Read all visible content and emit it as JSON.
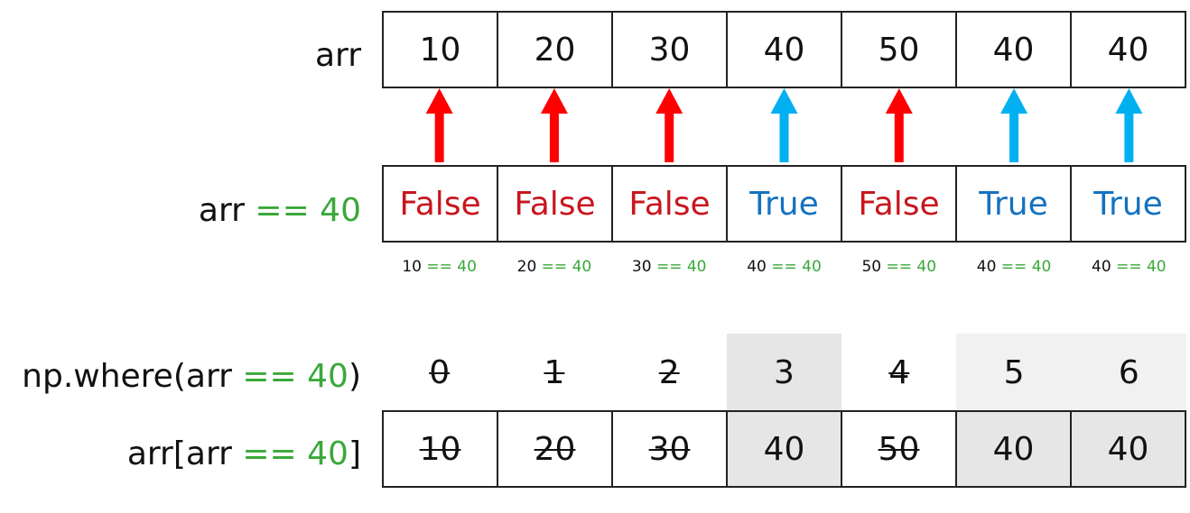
{
  "labels": {
    "arr": "arr",
    "cmp_prefix": "arr ",
    "cmp_op": "== 40",
    "where_prefix": "np.where(arr ",
    "where_op": "== 40",
    "where_suffix": ")",
    "index_prefix": "arr[arr ",
    "index_op": "== 40",
    "index_suffix": "]"
  },
  "values": [
    "10",
    "20",
    "30",
    "40",
    "50",
    "40",
    "40"
  ],
  "booleans": [
    {
      "text": "False",
      "state": "false"
    },
    {
      "text": "False",
      "state": "false"
    },
    {
      "text": "False",
      "state": "false"
    },
    {
      "text": "True",
      "state": "true"
    },
    {
      "text": "False",
      "state": "false"
    },
    {
      "text": "True",
      "state": "true"
    },
    {
      "text": "True",
      "state": "true"
    }
  ],
  "expressions": [
    {
      "left": "10",
      "op": "== 40"
    },
    {
      "left": "20",
      "op": "== 40"
    },
    {
      "left": "30",
      "op": "== 40"
    },
    {
      "left": "40",
      "op": "== 40"
    },
    {
      "left": "50",
      "op": "== 40"
    },
    {
      "left": "40",
      "op": "== 40"
    },
    {
      "left": "40",
      "op": "== 40"
    }
  ],
  "indices": [
    {
      "text": "0",
      "selected": false
    },
    {
      "text": "1",
      "selected": false
    },
    {
      "text": "2",
      "selected": false
    },
    {
      "text": "3",
      "selected": true
    },
    {
      "text": "4",
      "selected": false
    },
    {
      "text": "5",
      "selected": true
    },
    {
      "text": "6",
      "selected": true
    }
  ],
  "selected_values": [
    {
      "text": "10",
      "selected": false
    },
    {
      "text": "20",
      "selected": false
    },
    {
      "text": "30",
      "selected": false
    },
    {
      "text": "40",
      "selected": true
    },
    {
      "text": "50",
      "selected": false
    },
    {
      "text": "40",
      "selected": true
    },
    {
      "text": "40",
      "selected": true
    }
  ],
  "colors": {
    "false_arrow": "#ff0000",
    "true_arrow": "#00b0f0",
    "false_text": "#c8161e",
    "true_text": "#1572bf",
    "op_green": "#3aa83a"
  }
}
